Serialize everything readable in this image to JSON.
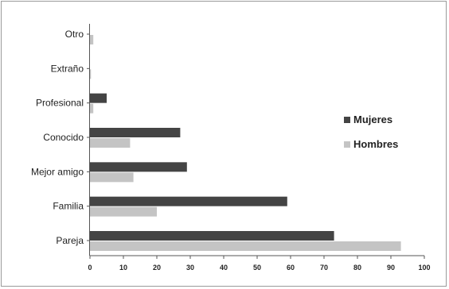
{
  "chart_data": {
    "type": "bar",
    "orientation": "horizontal",
    "categories": [
      "Otro",
      "Extraño",
      "Profesional",
      "Conocido",
      "Mejor amigo",
      "Familia",
      "Pareja"
    ],
    "series": [
      {
        "name": "Mujeres",
        "color": "#444444",
        "values": [
          0,
          0,
          5,
          27,
          29,
          59,
          73
        ]
      },
      {
        "name": "Hombres",
        "color": "#c4c4c4",
        "values": [
          1,
          0.3,
          1,
          12,
          13,
          20,
          93
        ]
      }
    ],
    "xlim": [
      0,
      100
    ],
    "xticks": [
      0,
      10,
      20,
      30,
      40,
      50,
      60,
      70,
      80,
      90,
      100
    ],
    "legend_position": "right",
    "grid": false
  }
}
